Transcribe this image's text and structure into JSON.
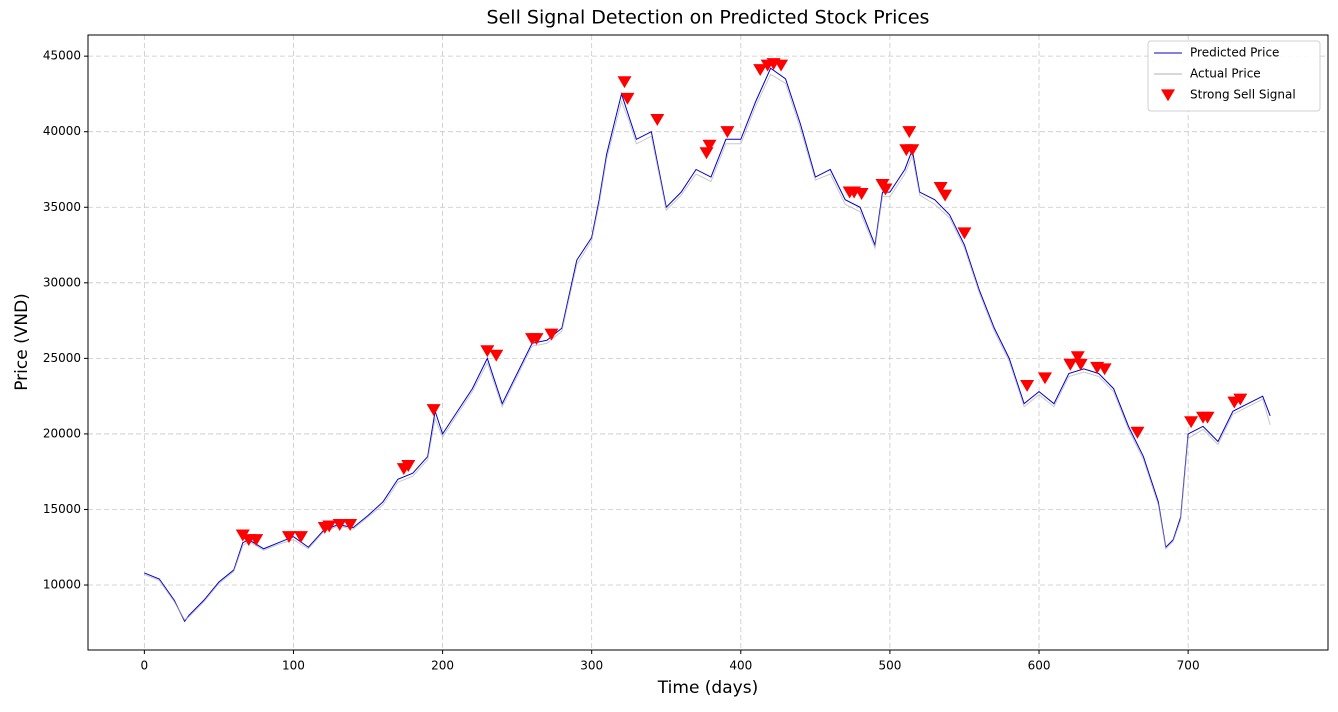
{
  "chart_data": {
    "type": "line",
    "title": "Sell Signal Detection on Predicted Stock Prices",
    "xlabel": "Time (days)",
    "ylabel": "Price (VND)",
    "xlim": [
      -37.8,
      793.8
    ],
    "ylim": [
      5700,
      46400
    ],
    "xticks": [
      0,
      100,
      200,
      300,
      400,
      500,
      600,
      700
    ],
    "yticks": [
      10000,
      15000,
      20000,
      25000,
      30000,
      35000,
      40000,
      45000
    ],
    "grid": true,
    "legend": "upper right",
    "x": [
      0,
      10,
      20,
      27,
      30,
      40,
      50,
      60,
      66,
      70,
      80,
      90,
      100,
      110,
      120,
      130,
      140,
      150,
      160,
      170,
      180,
      190,
      195,
      200,
      210,
      220,
      230,
      240,
      250,
      260,
      270,
      280,
      290,
      300,
      305,
      310,
      320,
      325,
      330,
      340,
      350,
      360,
      370,
      380,
      390,
      400,
      410,
      420,
      430,
      440,
      450,
      460,
      470,
      480,
      490,
      495,
      500,
      510,
      515,
      520,
      530,
      540,
      550,
      560,
      570,
      580,
      590,
      600,
      610,
      620,
      630,
      640,
      650,
      660,
      670,
      680,
      685,
      690,
      695,
      700,
      710,
      720,
      730,
      740,
      750,
      755
    ],
    "series": [
      {
        "name": "Predicted Price",
        "color": "#0000cc",
        "values": [
          10800,
          10400,
          9000,
          7600,
          8000,
          9000,
          10200,
          11000,
          12800,
          13000,
          12400,
          12800,
          13200,
          12500,
          13600,
          14000,
          13800,
          14600,
          15500,
          17000,
          17400,
          18500,
          21500,
          20000,
          21500,
          23000,
          25000,
          22000,
          24000,
          26000,
          26200,
          27000,
          31500,
          33000,
          35500,
          38500,
          42500,
          41000,
          39500,
          40000,
          35000,
          36000,
          37500,
          37000,
          39500,
          39500,
          42000,
          44200,
          43500,
          40500,
          37000,
          37500,
          35500,
          35000,
          32500,
          36000,
          36000,
          37500,
          38800,
          36000,
          35500,
          34500,
          32500,
          29500,
          27000,
          25000,
          22000,
          22800,
          22000,
          24000,
          24300,
          24000,
          23000,
          20500,
          18500,
          15500,
          12500,
          13000,
          14500,
          20000,
          20500,
          19500,
          21500,
          22000,
          22500,
          21200
        ]
      },
      {
        "name": "Actual Price",
        "color": "#b0b0b0",
        "values": [
          10700,
          10300,
          8900,
          7700,
          7900,
          8900,
          10100,
          10900,
          12600,
          12900,
          12300,
          12700,
          13000,
          12400,
          13500,
          13900,
          13700,
          14500,
          15300,
          16800,
          17200,
          18300,
          21000,
          19800,
          21300,
          22800,
          24700,
          21800,
          23800,
          25800,
          26000,
          26800,
          31200,
          32800,
          35200,
          38200,
          42000,
          40700,
          39200,
          39700,
          34800,
          35800,
          37200,
          36700,
          39200,
          39200,
          41700,
          43800,
          43200,
          40200,
          36800,
          37200,
          35200,
          34700,
          32300,
          35700,
          35700,
          37200,
          38400,
          35800,
          35200,
          34300,
          32300,
          29300,
          26800,
          24800,
          21800,
          22600,
          21800,
          23800,
          24100,
          23800,
          22800,
          20300,
          18300,
          15300,
          12400,
          12900,
          14300,
          19700,
          20300,
          19300,
          21300,
          21800,
          22300,
          20600
        ]
      },
      {
        "name": "Strong Sell Signal",
        "color": "#ff0000",
        "marker": "v",
        "x": [
          66,
          70,
          75,
          97,
          105,
          121,
          124,
          131,
          138,
          174,
          177,
          194,
          230,
          236,
          260,
          263,
          273,
          322,
          324,
          344,
          377,
          379,
          391,
          413,
          418,
          422,
          427,
          473,
          476,
          481,
          495,
          497,
          511,
          513,
          515,
          534,
          537,
          550,
          592,
          604,
          621,
          626,
          628,
          639,
          644,
          666,
          702,
          710,
          713,
          731,
          735
        ],
        "values": [
          13300,
          13000,
          13000,
          13200,
          13200,
          13800,
          13900,
          14000,
          14000,
          17700,
          17900,
          21600,
          25500,
          25200,
          26300,
          26300,
          26600,
          43300,
          42200,
          40800,
          38600,
          39100,
          40000,
          44100,
          44400,
          44500,
          44400,
          36000,
          36000,
          35900,
          36500,
          36200,
          38800,
          40000,
          38800,
          36300,
          35800,
          33300,
          23200,
          23700,
          24600,
          25100,
          24600,
          24400,
          24300,
          20100,
          20800,
          21100,
          21100,
          22100,
          22300
        ]
      }
    ]
  }
}
